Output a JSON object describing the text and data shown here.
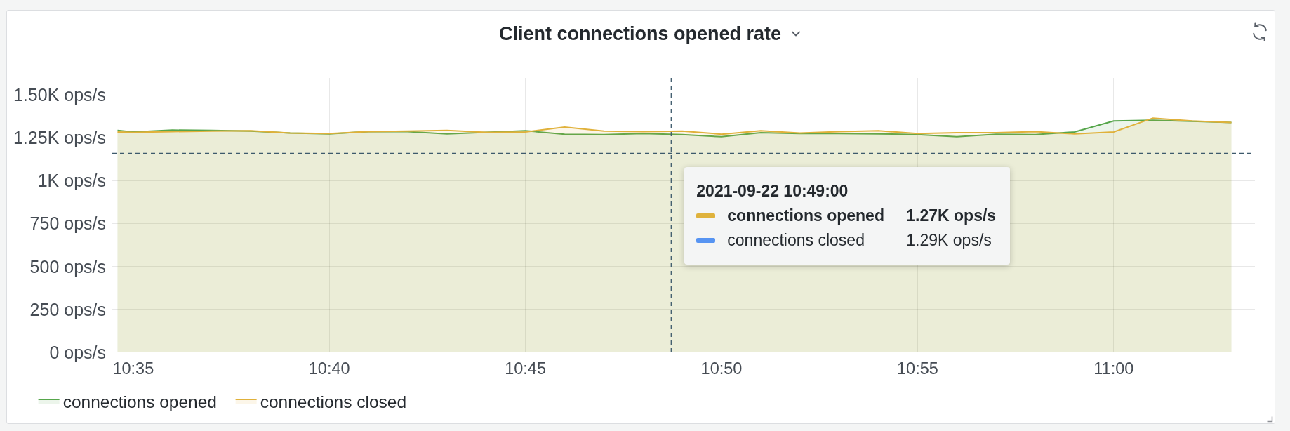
{
  "chart_data": {
    "type": "area",
    "title": "Client connections opened rate",
    "x": [
      "2021-09-22T10:34:36",
      "2021-09-22T10:35",
      "2021-09-22T10:36",
      "2021-09-22T10:37",
      "2021-09-22T10:38",
      "2021-09-22T10:39",
      "2021-09-22T10:40",
      "2021-09-22T10:41",
      "2021-09-22T10:42",
      "2021-09-22T10:43",
      "2021-09-22T10:44",
      "2021-09-22T10:45",
      "2021-09-22T10:46",
      "2021-09-22T10:47",
      "2021-09-22T10:48",
      "2021-09-22T10:49",
      "2021-09-22T10:50",
      "2021-09-22T10:51",
      "2021-09-22T10:52",
      "2021-09-22T10:53",
      "2021-09-22T10:54",
      "2021-09-22T10:55",
      "2021-09-22T10:56",
      "2021-09-22T10:57",
      "2021-09-22T10:58",
      "2021-09-22T10:59",
      "2021-09-22T11:00",
      "2021-09-22T11:01",
      "2021-09-22T11:02",
      "2021-09-22T11:03"
    ],
    "series": [
      {
        "name": "connections opened",
        "color": "#56a64b",
        "values": [
          1294,
          1285,
          1296,
          1294,
          1290,
          1279,
          1274,
          1287,
          1287,
          1274,
          1283,
          1292,
          1272,
          1270,
          1276,
          1270,
          1257,
          1281,
          1276,
          1276,
          1274,
          1270,
          1257,
          1272,
          1270,
          1285,
          1349,
          1353,
          1347,
          1340
        ]
      },
      {
        "name": "connections closed",
        "color": "#e0b13a",
        "values": [
          1285,
          1283,
          1287,
          1290,
          1292,
          1279,
          1276,
          1287,
          1290,
          1294,
          1283,
          1285,
          1314,
          1290,
          1287,
          1290,
          1272,
          1292,
          1279,
          1287,
          1292,
          1276,
          1281,
          1281,
          1287,
          1274,
          1285,
          1366,
          1349,
          1340
        ]
      }
    ],
    "xlim": [
      "2021-09-22T10:34:28",
      "2021-09-22T11:03:36"
    ],
    "xticks": [
      {
        "value": "2021-09-22T10:35",
        "label": "10:35"
      },
      {
        "value": "2021-09-22T10:40",
        "label": "10:40"
      },
      {
        "value": "2021-09-22T10:45",
        "label": "10:45"
      },
      {
        "value": "2021-09-22T10:50",
        "label": "10:50"
      },
      {
        "value": "2021-09-22T10:55",
        "label": "10:55"
      },
      {
        "value": "2021-09-22T11:00",
        "label": "11:00"
      }
    ],
    "ylim": [
      0,
      1600
    ],
    "yticks": [
      {
        "value": 0,
        "label": "0 ops/s"
      },
      {
        "value": 250,
        "label": "250 ops/s"
      },
      {
        "value": 500,
        "label": "500 ops/s"
      },
      {
        "value": 750,
        "label": "750 ops/s"
      },
      {
        "value": 1000,
        "label": "1K ops/s"
      },
      {
        "value": 1250,
        "label": "1.25K ops/s"
      },
      {
        "value": 1500,
        "label": "1.50K ops/s"
      }
    ],
    "ref_lines": [
      {
        "axis": "x",
        "value": "2021-09-22T10:48:43",
        "color": "#3d5a6c",
        "line_style": "dashed"
      },
      {
        "axis": "y",
        "value": 1160,
        "color": "#3d5a6c",
        "line_style": "dashed"
      }
    ],
    "annotations": [
      "2021-09-22 10:49:00",
      "1.27K ops/s",
      "1.29K ops/s"
    ],
    "grid": true,
    "legend": "bottom left"
  }
}
